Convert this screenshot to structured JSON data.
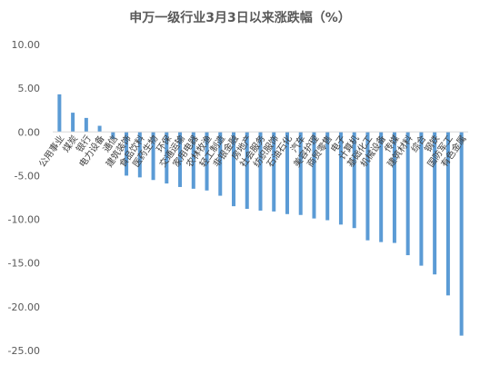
{
  "chart_data": {
    "type": "bar",
    "title": "申万一级行业3月3日以来涨跌幅（%）",
    "xlabel": "",
    "ylabel": "",
    "ylim": [
      -25,
      10
    ],
    "yticks": [
      "10.00",
      "5.00",
      "0.00",
      "-5.00",
      "-10.00",
      "-15.00",
      "-20.00",
      "-25.00"
    ],
    "grid": false,
    "legend": "none",
    "bar_color": "#5B9BD5",
    "categories": [
      "公用事业",
      "煤炭",
      "银行",
      "电力设备",
      "通信",
      "建筑装饰",
      "食品饮料",
      "医药生物",
      "环保",
      "交通运输",
      "家用电器",
      "农林牧渔",
      "轻工制造",
      "非银金融",
      "房地产",
      "社会服务",
      "纺织服饰",
      "石油石化",
      "汽车",
      "美容护理",
      "商贸零售",
      "电子",
      "计算机",
      "基础化工",
      "机械设备",
      "传媒",
      "建筑材料",
      "综合",
      "钢铁",
      "国防军工",
      "有色金属"
    ],
    "values": [
      4.3,
      2.2,
      1.6,
      0.7,
      -0.8,
      -5.0,
      -5.2,
      -5.5,
      -5.9,
      -6.3,
      -6.5,
      -6.7,
      -7.3,
      -8.5,
      -8.8,
      -9.0,
      -9.1,
      -9.4,
      -9.5,
      -9.9,
      -10.1,
      -10.6,
      -11.0,
      -12.4,
      -12.6,
      -12.7,
      -14.1,
      -15.3,
      -16.3,
      -18.7,
      -23.3
    ]
  }
}
